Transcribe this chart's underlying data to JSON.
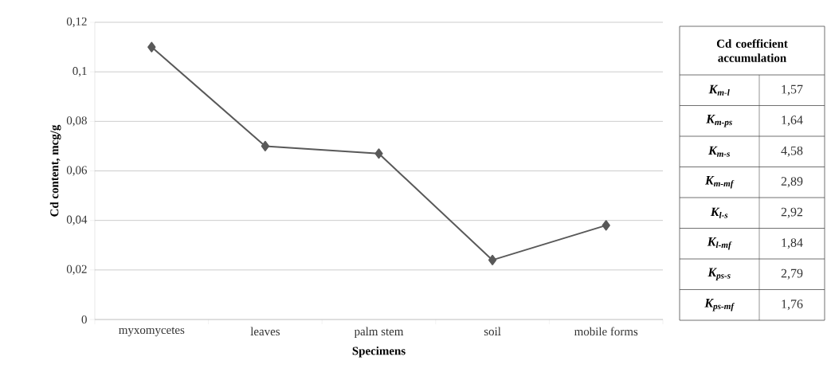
{
  "chart_data": [
    {
      "type": "line",
      "xlabel": "Specimens",
      "ylabel": "Cd content, mcg/g",
      "categories": [
        "myxomycetes",
        "leaves",
        "palm stem",
        "soil",
        "mobile forms"
      ],
      "values": [
        0.11,
        0.07,
        0.067,
        0.024,
        0.038
      ],
      "color": "#595959",
      "marker": "diamond",
      "grid": "y",
      "ylim": [
        0,
        0.12
      ],
      "yticks": [
        0,
        {
          "value": 0.02,
          "label": "0,02"
        },
        {
          "value": 0.04,
          "label": "0,04"
        },
        {
          "value": 0.06,
          "label": "0,06"
        },
        {
          "value": 0.08,
          "label": "0,08"
        },
        {
          "value": 0.1,
          "label": "0,1"
        },
        {
          "value": 0.12,
          "label": "0,12"
        }
      ]
    },
    {
      "type": "other",
      "title": "Cd coefficient accumulation",
      "categories": [
        "K$_{m-l}$",
        "K$_{m-ps}$",
        "K$_{m-s}$",
        "K$_{m-mf}$",
        "K$_{l-s}$",
        "K$_{l-mf}$",
        "K$_{ps-s}$",
        "K$_{ps-mf}$"
      ],
      "value_labels": [
        "1,57",
        "1,64",
        "4,58",
        "2,89",
        "2,92",
        "1,84",
        "2,79",
        "1,76"
      ]
    }
  ]
}
